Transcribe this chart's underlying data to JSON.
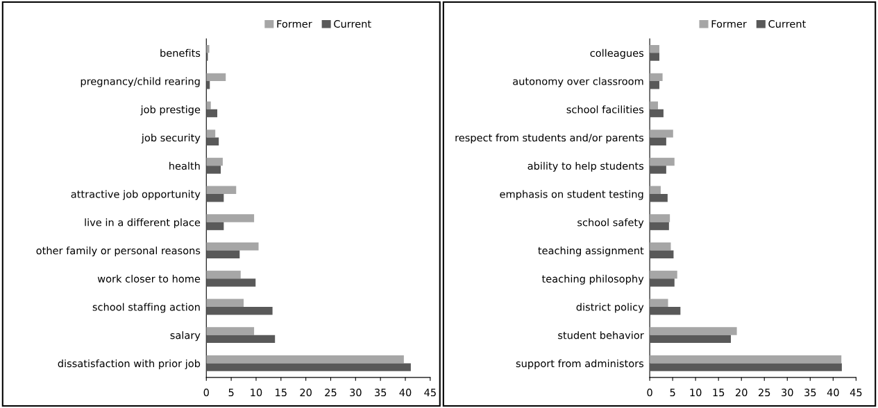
{
  "chart_data": [
    {
      "type": "bar",
      "orientation": "horizontal",
      "categories": [
        "benefits",
        "pregnancy/child rearing",
        "job prestige",
        "job security",
        "health",
        "attractive job opportunity",
        "live in a different place",
        "other family or personal reasons",
        "work closer to home",
        "school staffing action",
        "salary",
        "dissatisfaction with prior job"
      ],
      "series": [
        {
          "name": "Former",
          "color": "#a6a6a6",
          "values": [
            0.6,
            3.9,
            0.9,
            1.8,
            3.3,
            6.0,
            9.6,
            10.5,
            6.9,
            7.5,
            9.6,
            39.7
          ]
        },
        {
          "name": "Current",
          "color": "#595959",
          "values": [
            0.3,
            0.7,
            2.2,
            2.5,
            2.9,
            3.5,
            3.5,
            6.7,
            9.9,
            13.3,
            13.8,
            41.1
          ]
        }
      ],
      "xlim": [
        0,
        45
      ],
      "xticks": [
        0,
        5,
        10,
        15,
        20,
        25,
        30,
        35,
        40,
        45
      ],
      "grid": false,
      "legend": "top"
    },
    {
      "type": "bar",
      "orientation": "horizontal",
      "categories": [
        "colleagues",
        "autonomy over classroom",
        "school facilities",
        "respect from students and/or parents",
        "ability to help students",
        "emphasis on student testing",
        "school safety",
        "teaching assignment",
        "teaching philosophy",
        "district policy",
        "student behavior",
        "support from administors"
      ],
      "series": [
        {
          "name": "Former",
          "color": "#a6a6a6",
          "values": [
            2.1,
            2.8,
            1.8,
            5.1,
            5.4,
            2.4,
            4.4,
            4.6,
            6.0,
            4.0,
            19.0,
            41.8
          ]
        },
        {
          "name": "Current",
          "color": "#595959",
          "values": [
            2.1,
            2.1,
            3.0,
            3.6,
            3.6,
            3.9,
            4.2,
            5.2,
            5.4,
            6.7,
            17.7,
            41.9
          ]
        }
      ],
      "xlim": [
        0,
        45
      ],
      "xticks": [
        0,
        5,
        10,
        15,
        20,
        25,
        30,
        35,
        40,
        45
      ],
      "grid": false,
      "legend": "top"
    }
  ]
}
